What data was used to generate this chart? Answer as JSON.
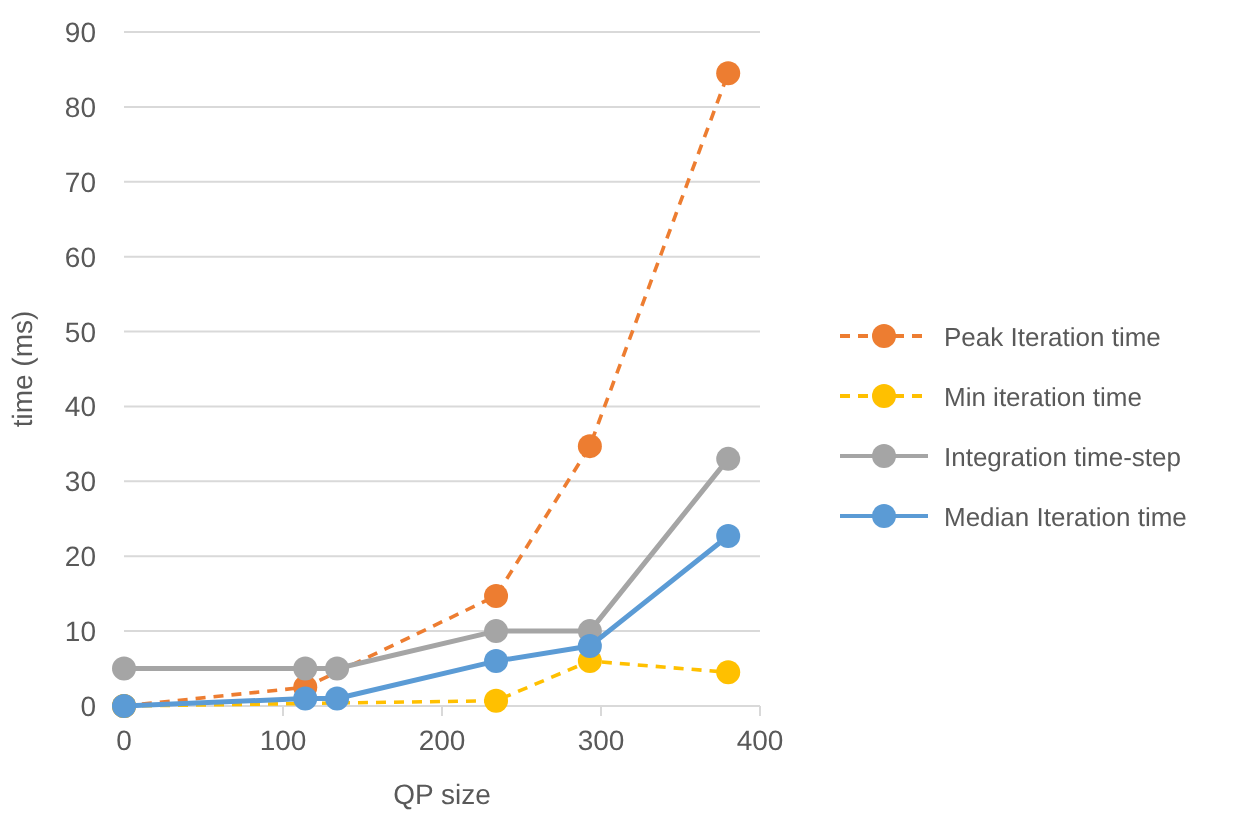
{
  "chart_data": {
    "type": "line",
    "xlabel": "QP size",
    "ylabel": "time (ms)",
    "x": [
      0,
      114,
      134,
      234,
      293,
      380
    ],
    "xlim": [
      0,
      400
    ],
    "xticks": [
      0,
      100,
      200,
      300,
      400
    ],
    "ylim": [
      0,
      90
    ],
    "yticks": [
      0,
      10,
      20,
      30,
      40,
      50,
      60,
      70,
      80,
      90
    ],
    "grid": "y",
    "legend": "right",
    "marker": "circle",
    "series": [
      {
        "name": "Peak Iteration time",
        "color": "#ed7d31",
        "line_style": "dashed",
        "values": [
          0,
          2.5,
          null,
          14.7,
          34.7,
          84.5
        ]
      },
      {
        "name": "Min iteration time",
        "color": "#ffc000",
        "line_style": "dashed",
        "values": [
          0,
          null,
          null,
          0.7,
          6,
          4.5
        ]
      },
      {
        "name": "Integration time-step",
        "color": "#a5a5a5",
        "line_style": "solid",
        "values": [
          5,
          5,
          5,
          10,
          10,
          33
        ]
      },
      {
        "name": "Median Iteration time",
        "color": "#5b9bd5",
        "line_style": "solid",
        "values": [
          0,
          1,
          1,
          6,
          8,
          22.7
        ]
      }
    ]
  }
}
